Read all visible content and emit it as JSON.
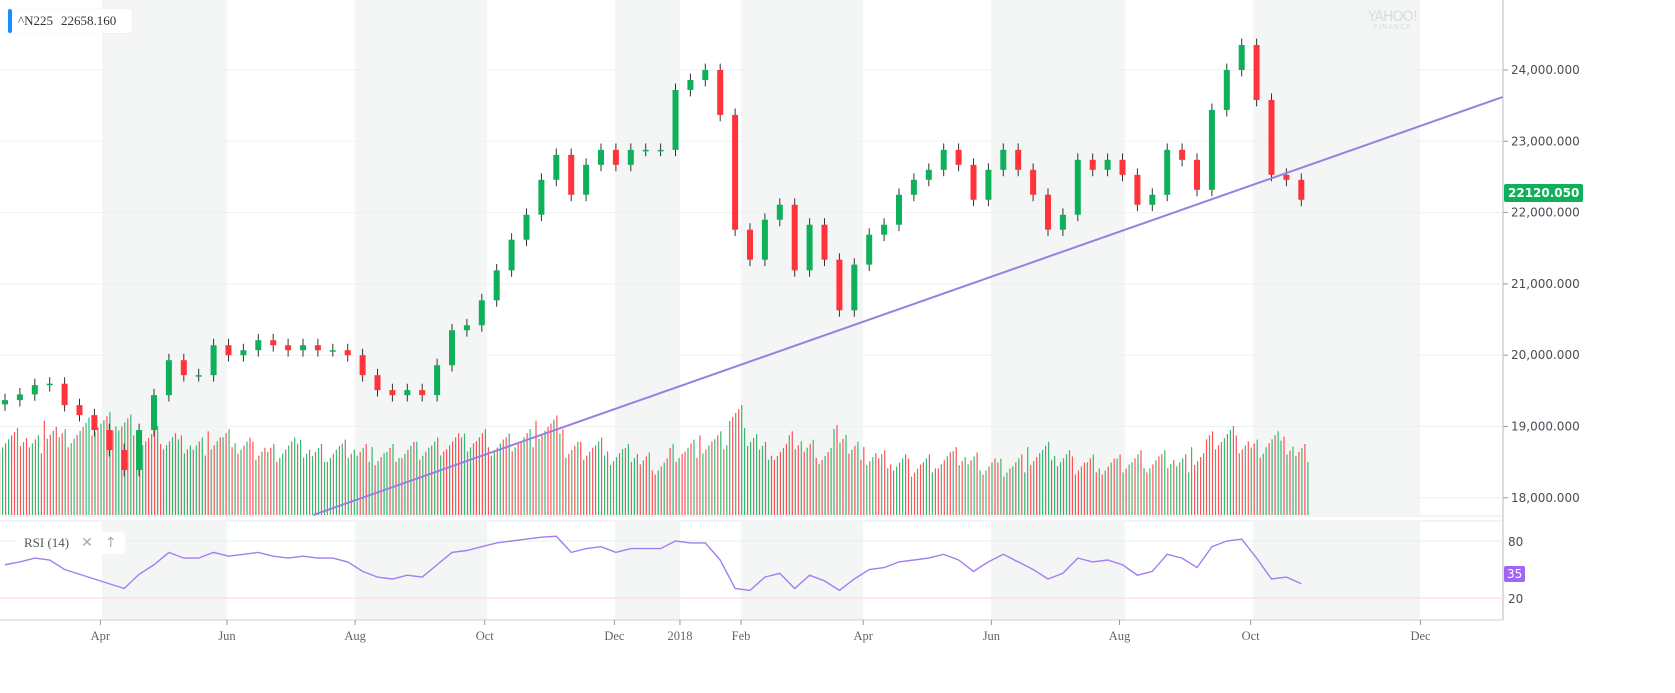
{
  "header": {
    "symbol": "^N225",
    "last_value": "22658.160"
  },
  "watermark": {
    "line1": "YAHOO!",
    "line2": "FINANCE"
  },
  "last_price_badge": "22120.050",
  "rsi": {
    "label": "RSI (14)",
    "close_icon": "close-icon",
    "up_icon": "arrow-up-icon",
    "upper": "80",
    "lower": "20",
    "current": "35"
  },
  "colors": {
    "up": "#0eb05a",
    "down": "#ff333a",
    "trendline": "#9a7fe0",
    "rsi_line": "#a37df2",
    "band": "#f4f6f6"
  },
  "chart_data": {
    "type": "candlestick",
    "title": "^N225",
    "y_axis": {
      "ticks": [
        "24,000.000",
        "23,000.000",
        "22,000.000",
        "21,000.000",
        "20,000.000",
        "19,000.000",
        "18,000.000"
      ],
      "tick_values": [
        24000,
        23000,
        22000,
        21000,
        20000,
        19000,
        18000
      ],
      "range": [
        17800,
        24950
      ]
    },
    "x_axis": {
      "ticks": [
        "Apr",
        "Jun",
        "Aug",
        "Oct",
        "Dec",
        "2018",
        "Feb",
        "Apr",
        "Jun",
        "Aug",
        "Oct",
        "Dec"
      ],
      "tick_index": [
        6.4,
        14.9,
        23.5,
        32.2,
        40.9,
        45.3,
        49.4,
        57.6,
        66.2,
        74.8,
        83.6,
        95
      ]
    },
    "closes": [
      19370,
      19450,
      19580,
      19600,
      19300,
      19160,
      18950,
      18670,
      18390,
      18950,
      19440,
      19930,
      19720,
      19720,
      20140,
      20000,
      20070,
      20210,
      20140,
      20070,
      20140,
      20070,
      20070,
      20000,
      19720,
      19510,
      19440,
      19510,
      19440,
      19860,
      20350,
      20420,
      20770,
      21190,
      21620,
      21970,
      22460,
      22810,
      22250,
      22670,
      22880,
      22670,
      22880,
      22880,
      22880,
      23720,
      23860,
      24000,
      23370,
      21760,
      21340,
      21900,
      22110,
      21190,
      21830,
      21340,
      20630,
      21270,
      21690,
      21830,
      22250,
      22460,
      22600,
      22880,
      22670,
      22180,
      22600,
      22880,
      22600,
      22250,
      21760,
      21970,
      22740,
      22600,
      22740,
      22530,
      22110,
      22250,
      22880,
      22740,
      22320,
      23440,
      24000,
      24350,
      23580,
      22530,
      22460,
      22180
    ],
    "volume_relative": [
      70,
      75,
      68,
      80,
      72,
      78,
      85,
      90,
      88,
      70,
      75,
      72,
      68,
      66,
      70,
      72,
      64,
      62,
      60,
      66,
      62,
      58,
      60,
      64,
      60,
      55,
      58,
      60,
      62,
      66,
      70,
      68,
      72,
      66,
      70,
      74,
      80,
      85,
      60,
      62,
      66,
      55,
      58,
      50,
      48,
      60,
      64,
      66,
      70,
      95,
      75,
      62,
      60,
      70,
      62,
      58,
      78,
      62,
      55,
      52,
      48,
      46,
      50,
      52,
      55,
      50,
      48,
      46,
      50,
      55,
      60,
      52,
      48,
      50,
      46,
      48,
      52,
      50,
      54,
      50,
      55,
      70,
      75,
      68,
      64,
      72,
      65,
      58
    ],
    "rsi_values": [
      55,
      58,
      62,
      60,
      50,
      45,
      40,
      35,
      30,
      45,
      55,
      68,
      62,
      62,
      68,
      64,
      66,
      68,
      64,
      62,
      64,
      62,
      62,
      58,
      48,
      42,
      40,
      44,
      42,
      55,
      68,
      70,
      74,
      78,
      80,
      82,
      84,
      85,
      68,
      72,
      74,
      68,
      72,
      72,
      72,
      80,
      78,
      78,
      60,
      30,
      28,
      42,
      46,
      30,
      44,
      38,
      28,
      40,
      50,
      52,
      58,
      60,
      62,
      66,
      60,
      48,
      58,
      66,
      58,
      50,
      40,
      46,
      62,
      58,
      60,
      55,
      44,
      48,
      66,
      62,
      52,
      74,
      80,
      82,
      62,
      40,
      42,
      35
    ],
    "rsi_range": [
      0,
      100
    ],
    "rsi_levels": [
      80,
      20
    ],
    "trendline": [
      {
        "index": 20.7,
        "price": 17760
      },
      {
        "index": 100.5,
        "price": 23620
      }
    ]
  }
}
